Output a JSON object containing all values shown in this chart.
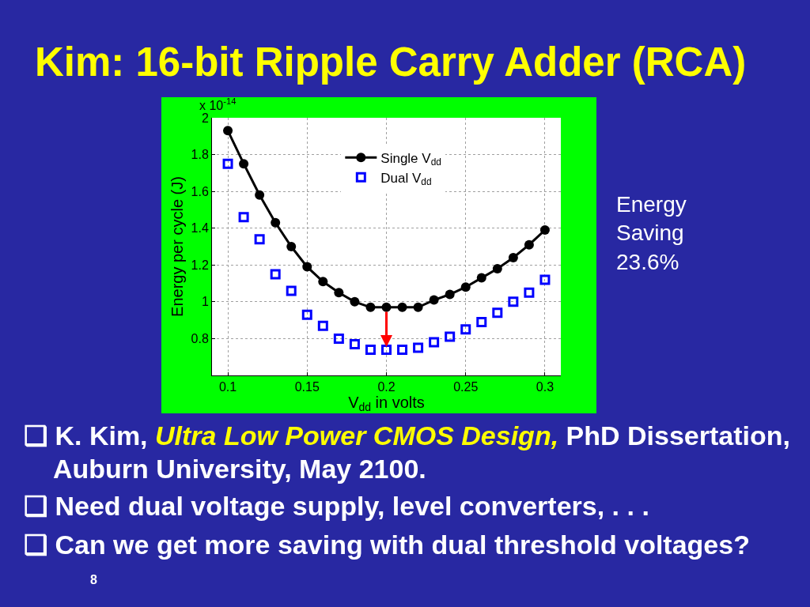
{
  "chart_data": {
    "type": "line",
    "title": "Kim: 16-bit Ripple Carry Adder (RCA)",
    "xlabel": "V$_{dd}$ in volts",
    "ylabel": "Energy per cycle (J)",
    "x": [
      0.1,
      0.11,
      0.12,
      0.13,
      0.14,
      0.15,
      0.16,
      0.17,
      0.18,
      0.19,
      0.2,
      0.21,
      0.22,
      0.23,
      0.24,
      0.25,
      0.26,
      0.27,
      0.28,
      0.29,
      0.3
    ],
    "series": [
      {
        "name": "Single V$_{dd}$",
        "color": "#000000",
        "marker": "circle",
        "line_style": "solid",
        "values": [
          1.93,
          1.75,
          1.58,
          1.43,
          1.3,
          1.19,
          1.11,
          1.05,
          1.0,
          0.97,
          0.97,
          0.97,
          0.97,
          1.01,
          1.04,
          1.08,
          1.13,
          1.18,
          1.24,
          1.31,
          1.39
        ]
      },
      {
        "name": "Dual V$_{dd}$",
        "type": "scatter",
        "color": "#0000ff",
        "marker": "square",
        "values": [
          1.75,
          1.46,
          1.34,
          1.15,
          1.06,
          0.93,
          0.87,
          0.8,
          0.77,
          0.74,
          0.74,
          0.74,
          0.75,
          0.78,
          0.81,
          0.85,
          0.89,
          0.94,
          1.0,
          1.05,
          1.12
        ]
      }
    ],
    "xlim": [
      0.09,
      0.31
    ],
    "xticks": [
      0.1,
      0.15,
      0.2,
      0.25,
      0.3
    ],
    "ylim": [
      0.6,
      2
    ],
    "yticks": [
      0.8,
      1,
      1.2,
      1.4,
      1.6,
      1.8,
      2
    ],
    "grid": true,
    "legend": "top",
    "annotations": [
      "x 10$^{-14}$",
      "Energy\nSaving\n23.6%",
      "❑ K. Kim,",
      "Ultra Low Power CMOS Design,",
      "PhD Dissertation,",
      "Auburn University, May 2100.",
      "❑ Need dual voltage supply, level converters, . . .",
      "❑ Can we get more saving with dual threshold voltages?",
      "8"
    ]
  }
}
